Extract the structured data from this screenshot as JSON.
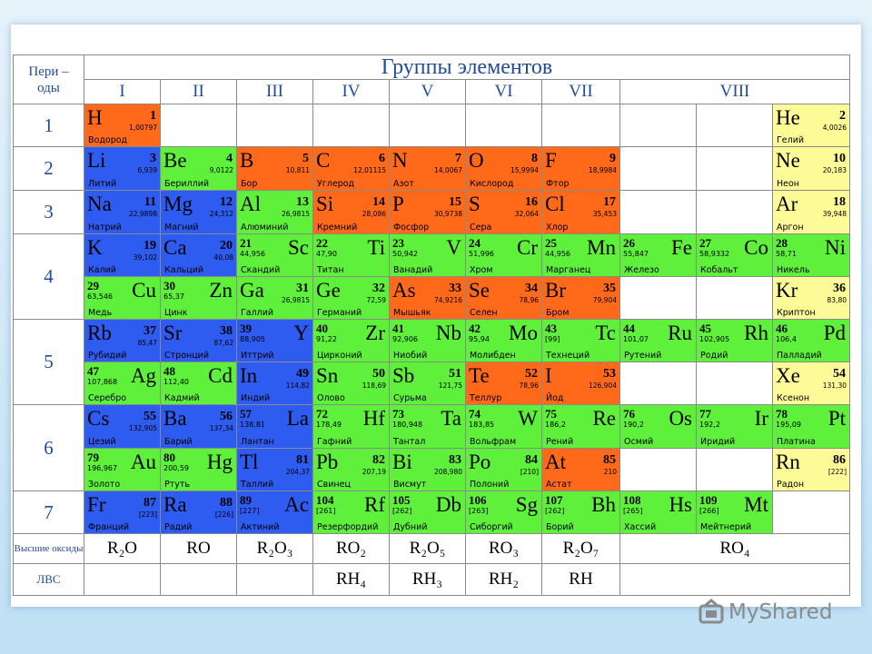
{
  "header": {
    "periods_label": "Пери – оды",
    "title": "Группы элементов",
    "groups": [
      "I",
      "II",
      "III",
      "IV",
      "V",
      "VI",
      "VII",
      "VIII"
    ]
  },
  "periods": [
    "1",
    "2",
    "3",
    "4",
    "5",
    "6",
    "7"
  ],
  "elements": [
    {
      "symbol": "H",
      "number": "1",
      "mass": "1,00797",
      "name": "Водород"
    },
    {
      "symbol": "He",
      "number": "2",
      "mass": "4,0026",
      "name": "Гелий"
    },
    {
      "symbol": "Li",
      "number": "3",
      "mass": "6,939",
      "name": "Литий"
    },
    {
      "symbol": "Be",
      "number": "4",
      "mass": "9,0122",
      "name": "Бериллий"
    },
    {
      "symbol": "B",
      "number": "5",
      "mass": "10,811",
      "name": "Бор"
    },
    {
      "symbol": "C",
      "number": "6",
      "mass": "12,01115",
      "name": "Углерод"
    },
    {
      "symbol": "N",
      "number": "7",
      "mass": "14,0067",
      "name": "Азот"
    },
    {
      "symbol": "O",
      "number": "8",
      "mass": "15,9994",
      "name": "Кислород"
    },
    {
      "symbol": "F",
      "number": "9",
      "mass": "18,9984",
      "name": "Фтор"
    },
    {
      "symbol": "Ne",
      "number": "10",
      "mass": "20,183",
      "name": "Неон"
    },
    {
      "symbol": "Na",
      "number": "11",
      "mass": "22,9898",
      "name": "Натрий"
    },
    {
      "symbol": "Mg",
      "number": "12",
      "mass": "24,312",
      "name": "Магний"
    },
    {
      "symbol": "Al",
      "number": "13",
      "mass": "26,9815",
      "name": "Алюминий"
    },
    {
      "symbol": "Si",
      "number": "14",
      "mass": "28,086",
      "name": "Кремний"
    },
    {
      "symbol": "P",
      "number": "15",
      "mass": "30,9738",
      "name": "Фосфор"
    },
    {
      "symbol": "S",
      "number": "16",
      "mass": "32,064",
      "name": "Сера"
    },
    {
      "symbol": "Cl",
      "number": "17",
      "mass": "35,453",
      "name": "Хлор"
    },
    {
      "symbol": "Ar",
      "number": "18",
      "mass": "39,948",
      "name": "Аргон"
    },
    {
      "symbol": "K",
      "number": "19",
      "mass": "39,102",
      "name": "Калий"
    },
    {
      "symbol": "Ca",
      "number": "20",
      "mass": "40,08",
      "name": "Кальций"
    },
    {
      "symbol": "Sc",
      "number": "21",
      "mass": "44,956",
      "name": "Скандий"
    },
    {
      "symbol": "Ti",
      "number": "22",
      "mass": "47,90",
      "name": "Титан"
    },
    {
      "symbol": "V",
      "number": "23",
      "mass": "50,942",
      "name": "Ванадий"
    },
    {
      "symbol": "Cr",
      "number": "24",
      "mass": "51,996",
      "name": "Хром"
    },
    {
      "symbol": "Mn",
      "number": "25",
      "mass": "44,956",
      "name": "Марганец"
    },
    {
      "symbol": "Fe",
      "number": "26",
      "mass": "55,847",
      "name": "Железо"
    },
    {
      "symbol": "Co",
      "number": "27",
      "mass": "58,9332",
      "name": "Кобальт"
    },
    {
      "symbol": "Ni",
      "number": "28",
      "mass": "58,71",
      "name": "Никель"
    },
    {
      "symbol": "Cu",
      "number": "29",
      "mass": "63,546",
      "name": "Медь"
    },
    {
      "symbol": "Zn",
      "number": "30",
      "mass": "65,37",
      "name": "Цинк"
    },
    {
      "symbol": "Ga",
      "number": "31",
      "mass": "26,9815",
      "name": "Галлий"
    },
    {
      "symbol": "Ge",
      "number": "32",
      "mass": "72,59",
      "name": "Германий"
    },
    {
      "symbol": "As",
      "number": "33",
      "mass": "74,9216",
      "name": "Мышьяк"
    },
    {
      "symbol": "Se",
      "number": "34",
      "mass": "78,96",
      "name": "Селен"
    },
    {
      "symbol": "Br",
      "number": "35",
      "mass": "79,904",
      "name": "Бром"
    },
    {
      "symbol": "Kr",
      "number": "36",
      "mass": "83,80",
      "name": "Криптон"
    },
    {
      "symbol": "Rb",
      "number": "37",
      "mass": "85,47",
      "name": "Рубидий"
    },
    {
      "symbol": "Sr",
      "number": "38",
      "mass": "87,62",
      "name": "Стронций"
    },
    {
      "symbol": "Y",
      "number": "39",
      "mass": "88,905",
      "name": "Иттрий"
    },
    {
      "symbol": "Zr",
      "number": "40",
      "mass": "91,22",
      "name": "Цирконий"
    },
    {
      "symbol": "Nb",
      "number": "41",
      "mass": "92,906",
      "name": "Ниобий"
    },
    {
      "symbol": "Mo",
      "number": "42",
      "mass": "95,94",
      "name": "Молибден"
    },
    {
      "symbol": "Tc",
      "number": "43",
      "mass": "[99]",
      "name": "Технеций"
    },
    {
      "symbol": "Ru",
      "number": "44",
      "mass": "101,07",
      "name": "Рутений"
    },
    {
      "symbol": "Rh",
      "number": "45",
      "mass": "102,905",
      "name": "Родий"
    },
    {
      "symbol": "Pd",
      "number": "46",
      "mass": "106,4",
      "name": "Палладий"
    },
    {
      "symbol": "Ag",
      "number": "47",
      "mass": "107,868",
      "name": "Серебро"
    },
    {
      "symbol": "Cd",
      "number": "48",
      "mass": "112,40",
      "name": "Кадмий"
    },
    {
      "symbol": "In",
      "number": "49",
      "mass": "114,82",
      "name": "Индий"
    },
    {
      "symbol": "Sn",
      "number": "50",
      "mass": "118,69",
      "name": "Олово"
    },
    {
      "symbol": "Sb",
      "number": "51",
      "mass": "121,75",
      "name": "Сурьма"
    },
    {
      "symbol": "Te",
      "number": "52",
      "mass": "78,96",
      "name": "Теллур"
    },
    {
      "symbol": "I",
      "number": "53",
      "mass": "126,904",
      "name": "Йод"
    },
    {
      "symbol": "Xe",
      "number": "54",
      "mass": "131,30",
      "name": "Ксенон"
    },
    {
      "symbol": "Cs",
      "number": "55",
      "mass": "132,905",
      "name": "Цезий"
    },
    {
      "symbol": "Ba",
      "number": "56",
      "mass": "137,34",
      "name": "Барий"
    },
    {
      "symbol": "La",
      "number": "57",
      "mass": "138,81",
      "name": "Лантан"
    },
    {
      "symbol": "Hf",
      "number": "72",
      "mass": "178,49",
      "name": "Гафний"
    },
    {
      "symbol": "Ta",
      "number": "73",
      "mass": "180,948",
      "name": "Тантал"
    },
    {
      "symbol": "W",
      "number": "74",
      "mass": "183,85",
      "name": "Вольфрам"
    },
    {
      "symbol": "Re",
      "number": "75",
      "mass": "186,2",
      "name": "Рений"
    },
    {
      "symbol": "Os",
      "number": "76",
      "mass": "190,2",
      "name": "Осмий"
    },
    {
      "symbol": "Ir",
      "number": "77",
      "mass": "192,2",
      "name": "Иридий"
    },
    {
      "symbol": "Pt",
      "number": "78",
      "mass": "195,09",
      "name": "Платина"
    },
    {
      "symbol": "Au",
      "number": "79",
      "mass": "196,967",
      "name": "Золото"
    },
    {
      "symbol": "Hg",
      "number": "80",
      "mass": "200,59",
      "name": "Ртуть"
    },
    {
      "symbol": "Tl",
      "number": "81",
      "mass": "204,37",
      "name": "Таллий"
    },
    {
      "symbol": "Pb",
      "number": "82",
      "mass": "207,19",
      "name": "Свинец"
    },
    {
      "symbol": "Bi",
      "number": "83",
      "mass": "208,980",
      "name": "Висмут"
    },
    {
      "symbol": "Po",
      "number": "84",
      "mass": "[210]",
      "name": "Полоний"
    },
    {
      "symbol": "At",
      "number": "85",
      "mass": "210",
      "name": "Астат"
    },
    {
      "symbol": "Rn",
      "number": "86",
      "mass": "[222]",
      "name": "Радон"
    },
    {
      "symbol": "Fr",
      "number": "87",
      "mass": "[223]",
      "name": "Франций"
    },
    {
      "symbol": "Ra",
      "number": "88",
      "mass": "[226]",
      "name": "Радий"
    },
    {
      "symbol": "Ac",
      "number": "89",
      "mass": "[227]",
      "name": "Актиний"
    },
    {
      "symbol": "Rf",
      "number": "104",
      "mass": "[261]",
      "name": "Резерфордий"
    },
    {
      "symbol": "Db",
      "number": "105",
      "mass": "[262]",
      "name": "Дубний"
    },
    {
      "symbol": "Sg",
      "number": "106",
      "mass": "[263]",
      "name": "Сиборгий"
    },
    {
      "symbol": "Bh",
      "number": "107",
      "mass": "[262]",
      "name": "Борий"
    },
    {
      "symbol": "Hs",
      "number": "108",
      "mass": "[265]",
      "name": "Хассий"
    },
    {
      "symbol": "Mt",
      "number": "109",
      "mass": "[266]",
      "name": "Мейтнерий"
    }
  ],
  "oxides": {
    "label": "Высшие оксиды",
    "formulas": [
      "R₂O",
      "RO",
      "R₂O₃",
      "RO₂",
      "R₂O₅",
      "RO₃",
      "R₂O₇",
      "RO₄"
    ]
  },
  "hydrides": {
    "label": "ЛВС",
    "formulas": [
      "RH₄",
      "RH₃",
      "RH₂",
      "RH"
    ]
  },
  "watermark": "MyShared"
}
